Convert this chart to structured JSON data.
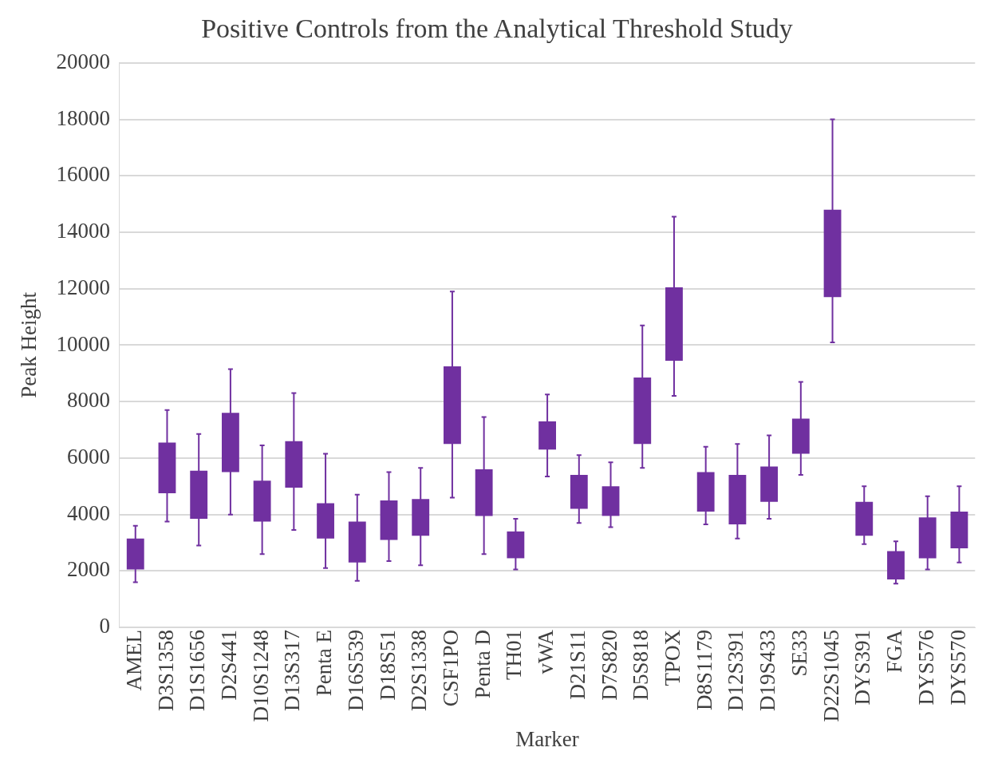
{
  "chart_data": {
    "type": "candlestick",
    "title": "Positive Controls from the Analytical Threshold Study",
    "xlabel": "Marker",
    "ylabel": "Peak Height",
    "categories": [
      "AMEL",
      "D3S1358",
      "D1S1656",
      "D2S441",
      "D10S1248",
      "D13S317",
      "Penta E",
      "D16S539",
      "D18S51",
      "D2S1338",
      "CSF1PO",
      "Penta D",
      "TH01",
      "vWA",
      "D21S11",
      "D7S820",
      "D5S818",
      "TPOX",
      "D8S1179",
      "D12S391",
      "D19S433",
      "SE33",
      "D22S1045",
      "DYS391",
      "FGA",
      "DYS576",
      "DYS570"
    ],
    "ohlc": [
      [
        2050,
        3600,
        1600,
        3150
      ],
      [
        4750,
        7700,
        3750,
        6550
      ],
      [
        3850,
        6850,
        2900,
        5550
      ],
      [
        5500,
        9150,
        4000,
        7600
      ],
      [
        3750,
        6450,
        2600,
        5200
      ],
      [
        4950,
        8300,
        3450,
        6600
      ],
      [
        3150,
        6150,
        2100,
        4400
      ],
      [
        2300,
        4700,
        1650,
        3750
      ],
      [
        3100,
        5500,
        2350,
        4500
      ],
      [
        3250,
        5650,
        2200,
        4550
      ],
      [
        6500,
        11900,
        4600,
        9250
      ],
      [
        3950,
        7450,
        2600,
        5600
      ],
      [
        2450,
        3850,
        2050,
        3400
      ],
      [
        6300,
        8250,
        5350,
        7300
      ],
      [
        4200,
        6100,
        3700,
        5400
      ],
      [
        3950,
        5850,
        3550,
        5000
      ],
      [
        6500,
        10700,
        5650,
        8850
      ],
      [
        9450,
        14550,
        8200,
        12050
      ],
      [
        4100,
        6400,
        3650,
        5500
      ],
      [
        3650,
        6500,
        3150,
        5400
      ],
      [
        4450,
        6800,
        3850,
        5700
      ],
      [
        6150,
        8700,
        5400,
        7400
      ],
      [
        11700,
        18000,
        10100,
        14800
      ],
      [
        3250,
        5000,
        2950,
        4450
      ],
      [
        1700,
        3050,
        1550,
        2700
      ],
      [
        2450,
        4650,
        2050,
        3900
      ],
      [
        2800,
        5000,
        2300,
        4100
      ]
    ],
    "color": "#7030a0",
    "ylim": [
      0,
      20000
    ],
    "yticks": [
      0,
      2000,
      4000,
      6000,
      8000,
      10000,
      12000,
      14000,
      16000,
      18000,
      20000
    ],
    "grid": "y",
    "legend": false
  }
}
